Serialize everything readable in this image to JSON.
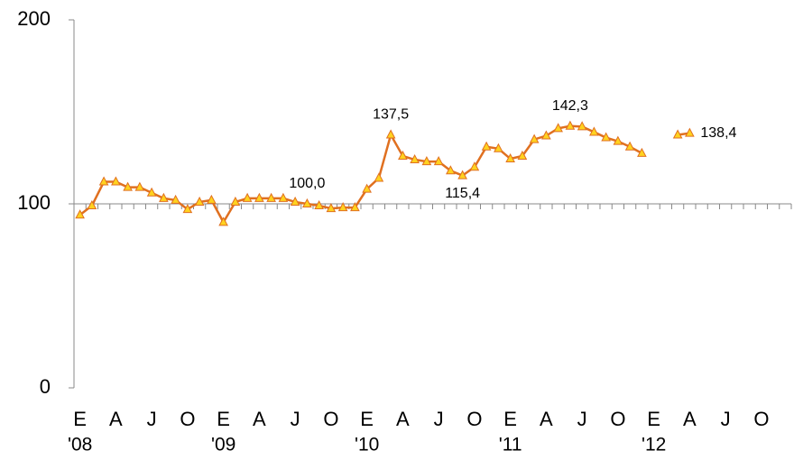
{
  "chart_data": {
    "type": "line",
    "categories": [
      "E",
      null,
      null,
      "A",
      null,
      null,
      "J",
      null,
      null,
      "O",
      null,
      null,
      "E",
      null,
      null,
      "A",
      null,
      null,
      "J",
      null,
      null,
      "O",
      null,
      null,
      "E",
      null,
      null,
      "A",
      null,
      null,
      "J",
      null,
      null,
      "O",
      null,
      null,
      "E",
      null,
      null,
      "A",
      null,
      null,
      "J",
      null,
      null,
      "O",
      null,
      null,
      "E",
      null,
      null,
      "A",
      null,
      null,
      "J",
      null,
      null,
      "O",
      null,
      null
    ],
    "year_labels": [
      "'08",
      null,
      null,
      null,
      null,
      null,
      null,
      null,
      null,
      null,
      null,
      null,
      "'09",
      null,
      null,
      null,
      null,
      null,
      null,
      null,
      null,
      null,
      null,
      null,
      "'10",
      null,
      null,
      null,
      null,
      null,
      null,
      null,
      null,
      null,
      null,
      null,
      "'11",
      null,
      null,
      null,
      null,
      null,
      null,
      null,
      null,
      null,
      null,
      null,
      "'12",
      null,
      null,
      null,
      null,
      null,
      null,
      null,
      null,
      null,
      null,
      null
    ],
    "values": [
      94,
      99,
      112,
      112,
      109,
      109,
      106,
      103,
      102,
      97,
      101,
      102,
      90,
      101,
      103,
      103,
      103,
      103,
      101,
      100.0,
      99,
      97.5,
      98,
      98,
      108,
      114,
      137.5,
      126,
      124,
      123,
      123,
      118,
      115.4,
      120,
      131,
      130,
      124.5,
      126,
      135,
      137,
      141,
      142.3,
      142,
      139,
      136,
      134,
      131,
      127.5,
      null,
      null,
      137.5,
      138.4,
      null,
      null,
      null,
      null,
      null,
      null,
      null,
      null
    ],
    "value_labels": [
      null,
      null,
      null,
      null,
      null,
      null,
      null,
      null,
      null,
      null,
      null,
      null,
      null,
      null,
      null,
      null,
      null,
      null,
      null,
      "100,0",
      null,
      null,
      null,
      null,
      null,
      null,
      "137,5",
      null,
      null,
      null,
      null,
      null,
      "115,4",
      null,
      null,
      null,
      null,
      null,
      null,
      null,
      null,
      "142,3",
      null,
      null,
      null,
      null,
      null,
      null,
      null,
      null,
      null,
      "138,4",
      null,
      null,
      null,
      null,
      null,
      null,
      null,
      null
    ],
    "color": "#e07020",
    "marker_color": "#ffd21f",
    "ylim": [
      0,
      200
    ],
    "yticks": [
      0,
      100,
      200
    ],
    "x_axis_at": 100
  }
}
